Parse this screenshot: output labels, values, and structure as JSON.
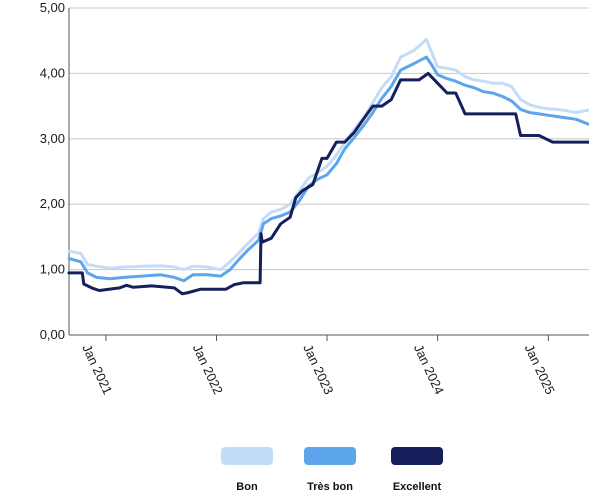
{
  "chart_data": {
    "type": "line",
    "title": "",
    "xlabel": "",
    "ylabel": "",
    "ylim": [
      0,
      5
    ],
    "yticks": [
      "0,00",
      "1,00",
      "2,00",
      "3,00",
      "4,00",
      "5,00"
    ],
    "xlim": [
      "2020-09-01",
      "2025-05-15"
    ],
    "xticks": [
      {
        "date": "2021-01-01",
        "label": "Jan 2021"
      },
      {
        "date": "2022-01-01",
        "label": "Jan 2022"
      },
      {
        "date": "2023-01-01",
        "label": "Jan 2023"
      },
      {
        "date": "2024-01-01",
        "label": "Jan 2024"
      },
      {
        "date": "2025-01-01",
        "label": "Jan 2025"
      }
    ],
    "grid": "horizontal",
    "legend_position": "bottom",
    "series": [
      {
        "name": "Bon",
        "color": "#c3ddf8",
        "points": [
          [
            "2020-09-01",
            1.28
          ],
          [
            "2020-10-10",
            1.25
          ],
          [
            "2020-11-01",
            1.08
          ],
          [
            "2020-12-01",
            1.05
          ],
          [
            "2021-01-15",
            1.02
          ],
          [
            "2021-03-01",
            1.04
          ],
          [
            "2021-05-01",
            1.05
          ],
          [
            "2021-07-01",
            1.06
          ],
          [
            "2021-08-15",
            1.04
          ],
          [
            "2021-09-15",
            1.0
          ],
          [
            "2021-10-15",
            1.05
          ],
          [
            "2021-12-01",
            1.04
          ],
          [
            "2022-01-15",
            1.0
          ],
          [
            "2022-02-15",
            1.12
          ],
          [
            "2022-03-15",
            1.25
          ],
          [
            "2022-04-15",
            1.4
          ],
          [
            "2022-05-20",
            1.56
          ],
          [
            "2022-06-05",
            1.78
          ],
          [
            "2022-07-01",
            1.88
          ],
          [
            "2022-08-01",
            1.92
          ],
          [
            "2022-09-01",
            2.0
          ],
          [
            "2022-10-01",
            2.2
          ],
          [
            "2022-11-01",
            2.4
          ],
          [
            "2022-12-01",
            2.48
          ],
          [
            "2023-01-01",
            2.58
          ],
          [
            "2023-02-01",
            2.75
          ],
          [
            "2023-03-01",
            2.95
          ],
          [
            "2023-04-01",
            3.15
          ],
          [
            "2023-05-01",
            3.32
          ],
          [
            "2023-06-01",
            3.55
          ],
          [
            "2023-07-01",
            3.78
          ],
          [
            "2023-08-01",
            3.95
          ],
          [
            "2023-09-01",
            4.25
          ],
          [
            "2023-10-15",
            4.35
          ],
          [
            "2023-11-25",
            4.52
          ],
          [
            "2023-12-10",
            4.35
          ],
          [
            "2024-01-01",
            4.1
          ],
          [
            "2024-02-01",
            4.08
          ],
          [
            "2024-03-01",
            4.05
          ],
          [
            "2024-04-01",
            3.95
          ],
          [
            "2024-05-01",
            3.9
          ],
          [
            "2024-06-01",
            3.88
          ],
          [
            "2024-07-01",
            3.85
          ],
          [
            "2024-08-01",
            3.85
          ],
          [
            "2024-09-01",
            3.8
          ],
          [
            "2024-10-01",
            3.6
          ],
          [
            "2024-11-01",
            3.52
          ],
          [
            "2024-12-01",
            3.48
          ],
          [
            "2025-01-01",
            3.46
          ],
          [
            "2025-02-01",
            3.45
          ],
          [
            "2025-03-01",
            3.43
          ],
          [
            "2025-04-01",
            3.4
          ],
          [
            "2025-05-15",
            3.44
          ]
        ]
      },
      {
        "name": "Très bon",
        "color": "#5ea6ec",
        "points": [
          [
            "2020-09-01",
            1.17
          ],
          [
            "2020-10-10",
            1.12
          ],
          [
            "2020-11-01",
            0.95
          ],
          [
            "2020-12-01",
            0.88
          ],
          [
            "2021-01-15",
            0.86
          ],
          [
            "2021-03-01",
            0.88
          ],
          [
            "2021-05-01",
            0.9
          ],
          [
            "2021-07-01",
            0.92
          ],
          [
            "2021-08-15",
            0.88
          ],
          [
            "2021-09-15",
            0.83
          ],
          [
            "2021-10-15",
            0.92
          ],
          [
            "2021-12-01",
            0.92
          ],
          [
            "2022-01-15",
            0.9
          ],
          [
            "2022-02-15",
            1.0
          ],
          [
            "2022-03-15",
            1.15
          ],
          [
            "2022-04-15",
            1.3
          ],
          [
            "2022-05-20",
            1.45
          ],
          [
            "2022-06-05",
            1.7
          ],
          [
            "2022-07-01",
            1.78
          ],
          [
            "2022-08-01",
            1.82
          ],
          [
            "2022-09-01",
            1.88
          ],
          [
            "2022-10-01",
            2.05
          ],
          [
            "2022-11-01",
            2.28
          ],
          [
            "2022-12-01",
            2.38
          ],
          [
            "2023-01-01",
            2.45
          ],
          [
            "2023-02-01",
            2.62
          ],
          [
            "2023-03-01",
            2.85
          ],
          [
            "2023-04-01",
            3.02
          ],
          [
            "2023-05-01",
            3.2
          ],
          [
            "2023-06-01",
            3.4
          ],
          [
            "2023-07-01",
            3.62
          ],
          [
            "2023-08-01",
            3.8
          ],
          [
            "2023-09-01",
            4.05
          ],
          [
            "2023-10-15",
            4.15
          ],
          [
            "2023-11-25",
            4.25
          ],
          [
            "2023-12-10",
            4.15
          ],
          [
            "2024-01-01",
            3.98
          ],
          [
            "2024-02-01",
            3.92
          ],
          [
            "2024-03-01",
            3.88
          ],
          [
            "2024-04-01",
            3.82
          ],
          [
            "2024-05-01",
            3.78
          ],
          [
            "2024-06-01",
            3.72
          ],
          [
            "2024-07-01",
            3.7
          ],
          [
            "2024-08-01",
            3.65
          ],
          [
            "2024-09-01",
            3.58
          ],
          [
            "2024-10-01",
            3.45
          ],
          [
            "2024-11-01",
            3.4
          ],
          [
            "2024-12-01",
            3.38
          ],
          [
            "2025-01-01",
            3.36
          ],
          [
            "2025-02-01",
            3.34
          ],
          [
            "2025-03-01",
            3.32
          ],
          [
            "2025-04-01",
            3.3
          ],
          [
            "2025-05-15",
            3.22
          ]
        ]
      },
      {
        "name": "Excellent",
        "color": "#15205a",
        "points": [
          [
            "2020-09-01",
            0.95
          ],
          [
            "2020-10-15",
            0.95
          ],
          [
            "2020-10-20",
            0.78
          ],
          [
            "2020-11-15",
            0.72
          ],
          [
            "2020-12-10",
            0.68
          ],
          [
            "2021-02-15",
            0.72
          ],
          [
            "2021-03-10",
            0.76
          ],
          [
            "2021-04-01",
            0.73
          ],
          [
            "2021-06-01",
            0.75
          ],
          [
            "2021-08-15",
            0.72
          ],
          [
            "2021-09-10",
            0.63
          ],
          [
            "2021-10-01",
            0.65
          ],
          [
            "2021-11-10",
            0.7
          ],
          [
            "2022-02-01",
            0.7
          ],
          [
            "2022-03-01",
            0.77
          ],
          [
            "2022-04-01",
            0.8
          ],
          [
            "2022-05-25",
            0.8
          ],
          [
            "2022-05-28",
            1.55
          ],
          [
            "2022-06-01",
            1.42
          ],
          [
            "2022-07-01",
            1.48
          ],
          [
            "2022-08-01",
            1.7
          ],
          [
            "2022-09-01",
            1.8
          ],
          [
            "2022-09-20",
            2.1
          ],
          [
            "2022-10-10",
            2.2
          ],
          [
            "2022-11-15",
            2.3
          ],
          [
            "2022-12-15",
            2.7
          ],
          [
            "2023-01-01",
            2.7
          ],
          [
            "2023-02-01",
            2.95
          ],
          [
            "2023-03-01",
            2.95
          ],
          [
            "2023-04-01",
            3.1
          ],
          [
            "2023-05-01",
            3.3
          ],
          [
            "2023-06-01",
            3.5
          ],
          [
            "2023-07-01",
            3.5
          ],
          [
            "2023-08-01",
            3.6
          ],
          [
            "2023-09-01",
            3.9
          ],
          [
            "2023-11-01",
            3.9
          ],
          [
            "2023-12-01",
            4.0
          ],
          [
            "2024-01-01",
            3.85
          ],
          [
            "2024-02-01",
            3.7
          ],
          [
            "2024-03-01",
            3.7
          ],
          [
            "2024-04-01",
            3.38
          ],
          [
            "2024-09-15",
            3.38
          ],
          [
            "2024-10-01",
            3.05
          ],
          [
            "2024-11-15",
            3.05
          ],
          [
            "2024-12-01",
            3.05
          ],
          [
            "2025-01-15",
            2.95
          ],
          [
            "2025-05-15",
            2.95
          ]
        ]
      }
    ]
  }
}
